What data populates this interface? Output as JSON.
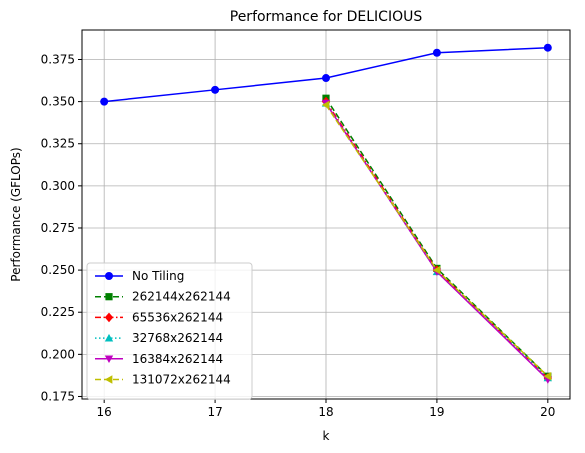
{
  "chart_data": {
    "type": "line",
    "title": "Performance for DELICIOUS",
    "xlabel": "k",
    "ylabel": "Performance (GFLOPs)",
    "xlim": [
      15.8,
      20.2
    ],
    "ylim": [
      0.1735,
      0.3925
    ],
    "xticks": [
      16,
      17,
      18,
      19,
      20
    ],
    "yticks": [
      0.175,
      0.2,
      0.225,
      0.25,
      0.275,
      0.3,
      0.325,
      0.35,
      0.375
    ],
    "xtick_labels": [
      "16",
      "17",
      "18",
      "19",
      "20"
    ],
    "ytick_labels": [
      "0.175",
      "0.200",
      "0.225",
      "0.250",
      "0.275",
      "0.300",
      "0.325",
      "0.350",
      "0.375"
    ],
    "grid": true,
    "legend_position": "lower left",
    "series": [
      {
        "name": "No Tiling",
        "color": "#0000ff",
        "dash": "solid",
        "marker": "circle",
        "x": [
          16,
          17,
          18,
          19,
          20
        ],
        "y": [
          0.35,
          0.357,
          0.364,
          0.379,
          0.382
        ]
      },
      {
        "name": "262144x262144",
        "color": "#008000",
        "dash": "dashed",
        "marker": "square",
        "x": [
          18,
          19,
          20
        ],
        "y": [
          0.352,
          0.251,
          0.187
        ]
      },
      {
        "name": "65536x262144",
        "color": "#ff0000",
        "dash": "dashdot",
        "marker": "diamond",
        "x": [
          18,
          19,
          20
        ],
        "y": [
          0.35,
          0.25,
          0.186
        ]
      },
      {
        "name": "32768x262144",
        "color": "#00bfbf",
        "dash": "dotted",
        "marker": "triangle-up",
        "x": [
          18,
          19,
          20
        ],
        "y": [
          0.349,
          0.249,
          0.186
        ]
      },
      {
        "name": "16384x262144",
        "color": "#bf00bf",
        "dash": "solid",
        "marker": "triangle-down",
        "x": [
          18,
          19,
          20
        ],
        "y": [
          0.349,
          0.249,
          0.185
        ]
      },
      {
        "name": "131072x262144",
        "color": "#bfbf00",
        "dash": "dashed",
        "marker": "triangle-left",
        "x": [
          18,
          19,
          20
        ],
        "y": [
          0.348,
          0.25,
          0.187
        ]
      }
    ]
  }
}
